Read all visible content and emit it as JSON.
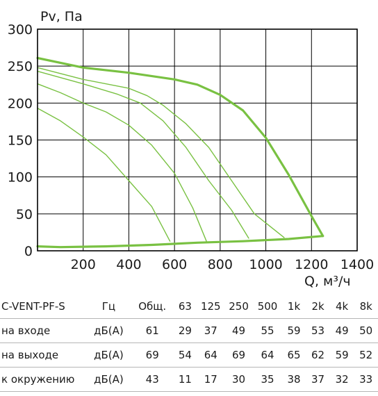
{
  "chart_data": {
    "type": "line",
    "ylabel": "Pv, Па",
    "xlabel": "Q, м³/ч",
    "xlim": [
      0,
      1400
    ],
    "ylim": [
      0,
      300
    ],
    "x_ticks": [
      "200",
      "400",
      "600",
      "800",
      "1000",
      "1200",
      "1400"
    ],
    "y_ticks": [
      "0",
      "50",
      "100",
      "150",
      "200",
      "250",
      "300"
    ],
    "grid": true,
    "series": [
      {
        "role": "max-curve",
        "color": "#79c142",
        "points": [
          [
            0,
            261
          ],
          [
            200,
            248
          ],
          [
            400,
            241
          ],
          [
            600,
            232
          ],
          [
            700,
            225
          ],
          [
            800,
            211
          ],
          [
            900,
            190
          ],
          [
            1000,
            153
          ],
          [
            1100,
            103
          ],
          [
            1200,
            47
          ],
          [
            1250,
            20
          ]
        ]
      },
      {
        "role": "speed-step",
        "color": "#79c142",
        "points": [
          [
            0,
            248
          ],
          [
            200,
            232
          ],
          [
            400,
            220
          ],
          [
            480,
            210
          ],
          [
            550,
            197
          ],
          [
            650,
            172
          ],
          [
            750,
            140
          ],
          [
            850,
            95
          ],
          [
            950,
            50
          ],
          [
            1080,
            18
          ]
        ]
      },
      {
        "role": "speed-step",
        "color": "#79c142",
        "points": [
          [
            0,
            243
          ],
          [
            200,
            226
          ],
          [
            350,
            212
          ],
          [
            450,
            200
          ],
          [
            550,
            176
          ],
          [
            650,
            140
          ],
          [
            750,
            95
          ],
          [
            850,
            55
          ],
          [
            925,
            17
          ]
        ]
      },
      {
        "role": "speed-step",
        "color": "#79c142",
        "points": [
          [
            0,
            226
          ],
          [
            100,
            214
          ],
          [
            200,
            200
          ],
          [
            300,
            188
          ],
          [
            400,
            170
          ],
          [
            500,
            143
          ],
          [
            600,
            105
          ],
          [
            680,
            58
          ],
          [
            740,
            13
          ]
        ]
      },
      {
        "role": "speed-step",
        "color": "#79c142",
        "points": [
          [
            0,
            193
          ],
          [
            100,
            176
          ],
          [
            200,
            154
          ],
          [
            300,
            130
          ],
          [
            400,
            95
          ],
          [
            500,
            60
          ],
          [
            580,
            13
          ]
        ]
      },
      {
        "role": "system-curve",
        "color": "#79c142",
        "points": [
          [
            0,
            6
          ],
          [
            100,
            5
          ],
          [
            300,
            6
          ],
          [
            500,
            8
          ],
          [
            700,
            11
          ],
          [
            900,
            13
          ],
          [
            1100,
            16
          ],
          [
            1250,
            20
          ]
        ]
      }
    ]
  },
  "table": {
    "model": "C-VENT-PF-S",
    "unit_header": "Гц",
    "columns": [
      "Общ.",
      "63",
      "125",
      "250",
      "500",
      "1k",
      "2k",
      "4k",
      "8k"
    ],
    "rows": [
      {
        "label": "на входе",
        "unit": "дБ(А)",
        "values": [
          "61",
          "29",
          "37",
          "49",
          "55",
          "59",
          "53",
          "49",
          "50"
        ]
      },
      {
        "label": "на выходе",
        "unit": "дБ(А)",
        "values": [
          "69",
          "54",
          "64",
          "69",
          "64",
          "65",
          "62",
          "59",
          "52"
        ]
      },
      {
        "label": "к окружению",
        "unit": "дБ(А)",
        "values": [
          "43",
          "11",
          "17",
          "30",
          "35",
          "38",
          "37",
          "32",
          "33"
        ]
      }
    ]
  }
}
